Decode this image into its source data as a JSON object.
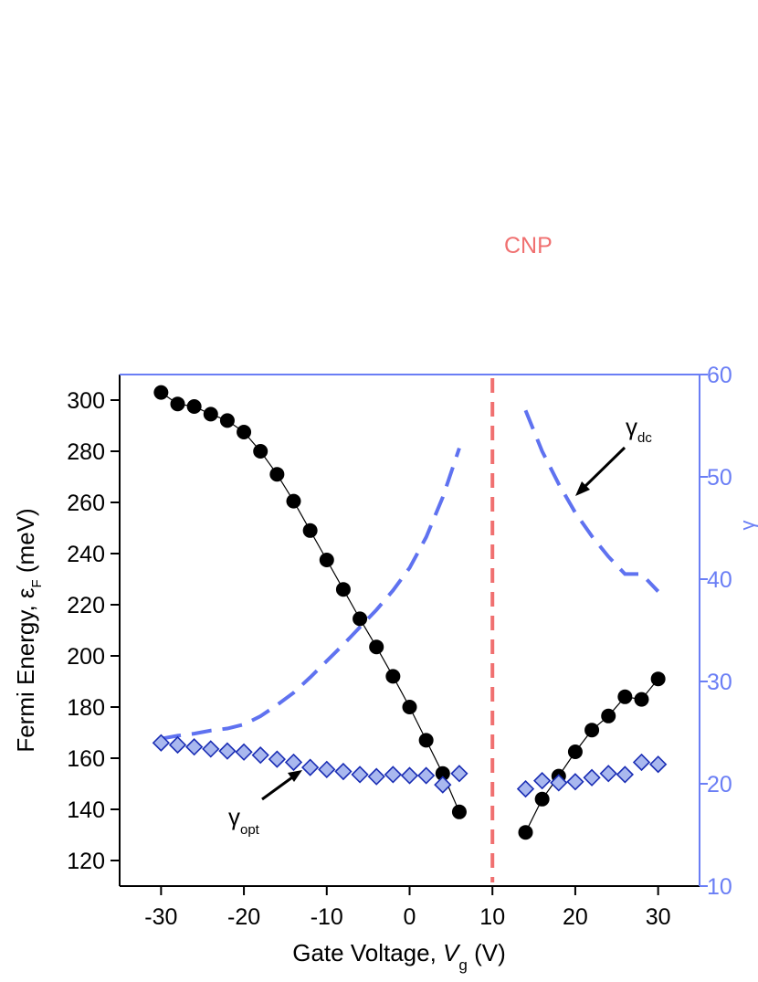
{
  "chart_data": {
    "type": "scatter",
    "title": "",
    "xlabel": {
      "prefix": "Gate Voltage,  ",
      "var": "V",
      "sub": "g",
      "suffix": " (V)"
    },
    "ylabel_left": {
      "prefix": "Fermi Energy,  ",
      "var": "ε",
      "sub": "F",
      "suffix": "  (meV)"
    },
    "ylabel_right": "γ",
    "xlim": [
      -35,
      35
    ],
    "ylim_left": [
      110,
      310
    ],
    "ylim_right": [
      10,
      60
    ],
    "xticks": [
      -30,
      -20,
      -10,
      0,
      10,
      20,
      30
    ],
    "yticks_left": [
      120,
      140,
      160,
      180,
      200,
      220,
      240,
      260,
      280,
      300
    ],
    "yticks_right": [
      10,
      20,
      30,
      40,
      50,
      60
    ],
    "grid": false,
    "colors": {
      "fermi": "#000000",
      "gamma_opt_fill": "#a9b8ef",
      "gamma_opt_edge": "#1a2db4",
      "gamma_dc": "#5f72f0",
      "cnp": "#f07070",
      "right_axis": "#6a7ef5"
    },
    "series": [
      {
        "key": "fermi",
        "axis": "left",
        "style": "black circles joined by thin line",
        "segments": [
          {
            "x": [
              -30,
              -28,
              -26,
              -24,
              -22,
              -20,
              -18,
              -16,
              -14,
              -12,
              -10,
              -8,
              -6,
              -4,
              -2,
              0,
              2,
              4,
              6
            ],
            "y": [
              303,
              298.5,
              297.5,
              294.5,
              292,
              287.5,
              280,
              271,
              260.5,
              249,
              237.5,
              226,
              214.5,
              203.5,
              192,
              180,
              167,
              154,
              139
            ]
          },
          {
            "x": [
              14,
              16,
              18,
              20,
              22,
              24,
              26,
              28,
              30
            ],
            "y": [
              131,
              144,
              153,
              162.5,
              171,
              176.5,
              184,
              183,
              191
            ]
          }
        ]
      },
      {
        "key": "gamma_opt",
        "label": {
          "sym": "γ",
          "sub": "opt"
        },
        "axis": "right",
        "style": "diamonds",
        "x": [
          -30,
          -28,
          -26,
          -24,
          -22,
          -20,
          -18,
          -16,
          -14,
          -12,
          -10,
          -8,
          -6,
          -4,
          -2,
          0,
          2,
          4,
          6,
          14,
          16,
          18,
          20,
          22,
          24,
          26,
          28,
          30
        ],
        "y": [
          24.0,
          23.8,
          23.6,
          23.4,
          23.2,
          23.1,
          22.8,
          22.4,
          22.1,
          21.6,
          21.4,
          21.2,
          20.9,
          20.7,
          20.9,
          20.8,
          20.8,
          19.9,
          21.0,
          19.5,
          20.3,
          20.1,
          20.2,
          20.6,
          21.0,
          20.9,
          22.1,
          21.9
        ]
      },
      {
        "key": "gamma_dc",
        "label": {
          "sym": "γ",
          "sub": "dc"
        },
        "axis": "right",
        "style": "dashed line",
        "segments": [
          {
            "x": [
              -30,
              -28,
              -26,
              -24,
              -22,
              -20,
              -18,
              -16,
              -14,
              -12,
              -10,
              -8,
              -6,
              -4,
              -2,
              0,
              2,
              4,
              6
            ],
            "y": [
              24.4,
              24.7,
              24.9,
              25.2,
              25.4,
              25.8,
              26.6,
              27.7,
              28.9,
              30.4,
              32.0,
              33.6,
              35.3,
              37.0,
              38.9,
              41.1,
              44.1,
              48.0,
              52.8
            ]
          },
          {
            "x": [
              14,
              16,
              18,
              20,
              22,
              24,
              26,
              28,
              30
            ],
            "y": [
              56.5,
              52.5,
              49.3,
              46.5,
              44.2,
              42.2,
              40.5,
              40.5,
              38.8
            ]
          }
        ]
      }
    ],
    "annotations": [
      {
        "key": "cnp",
        "text": "CNP",
        "x": 10
      }
    ]
  }
}
